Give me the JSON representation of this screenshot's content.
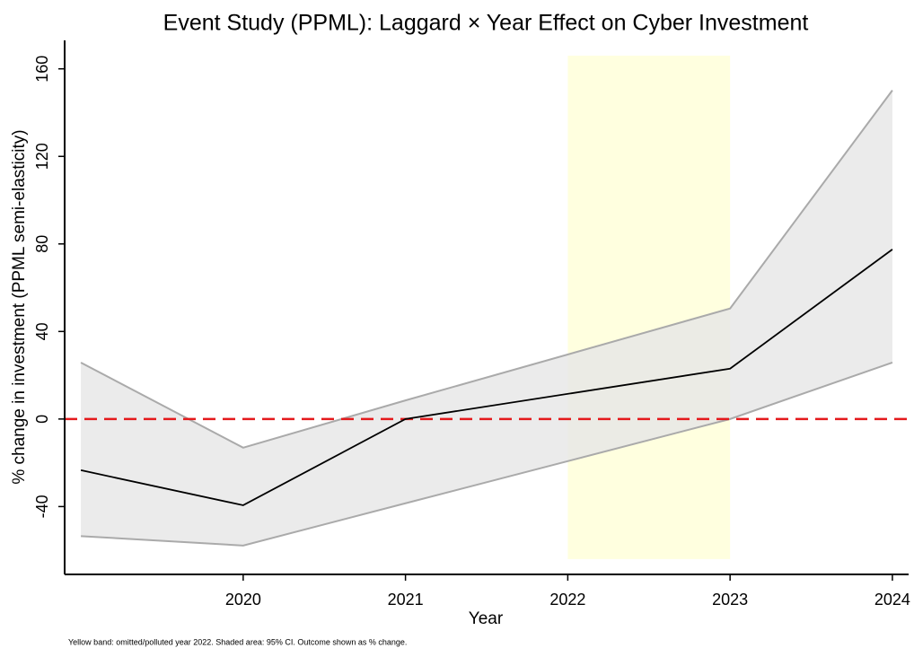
{
  "chart_data": {
    "type": "line",
    "title": "Event Study (PPML): Laggard × Year Effect on Cyber Investment",
    "xlabel": "Year",
    "ylabel": "% change in investment (PPML semi-elasticity)",
    "note": "Yellow band: omitted/polluted year 2022. Shaded area: 95% CI. Outcome shown as % change.",
    "x": [
      2019,
      2020,
      2021,
      2023,
      2024
    ],
    "values": [
      -23.4,
      -39.4,
      0,
      23,
      77.5
    ],
    "ci_upper": [
      25.8,
      -13.1,
      8.5,
      50.5,
      150.2
    ],
    "ci_lower": [
      -53.5,
      -57.8,
      -38.5,
      0,
      25.8
    ],
    "line_color": "#000000",
    "band_color": "#e6e6e6",
    "band_edge_color": "#aaaaaa",
    "highlight": {
      "x": [
        2022,
        2023
      ],
      "y": [
        -64,
        166
      ],
      "color": "#ffffd9"
    },
    "hline": {
      "value": 0,
      "color": "#e41a1c"
    },
    "xlim": [
      2018.9,
      2024.1
    ],
    "xticks": [
      2020,
      2021,
      2022,
      2023,
      2024
    ],
    "ylim": [
      -71,
      173
    ],
    "yticks": [
      -40,
      0,
      40,
      80,
      120,
      160
    ]
  }
}
